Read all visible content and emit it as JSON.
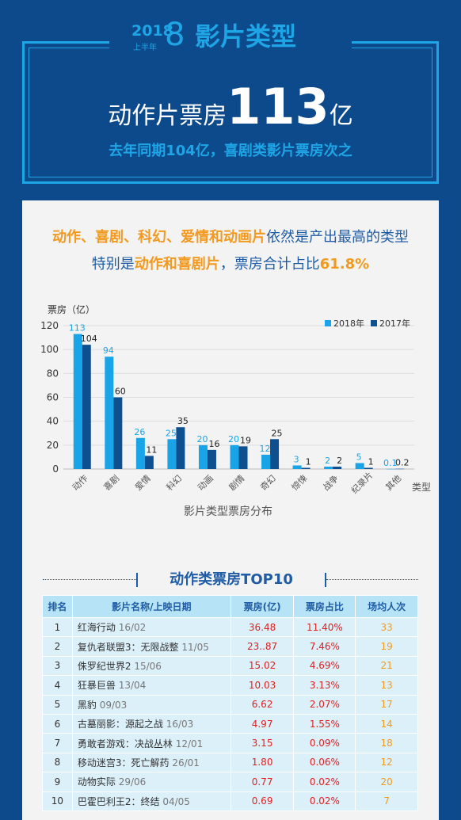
{
  "header": {
    "year": "2018",
    "period": "上半年",
    "big_digit": "8",
    "title": "影片类型",
    "headline_prefix": "动作片票房",
    "headline_number": "113",
    "headline_suffix": "亿",
    "subline": "去年同期104亿，喜剧类影片票房次之"
  },
  "intro": {
    "line1_highlight": "动作、喜剧、科幻、爱情和动画片",
    "line1_rest": "依然是产出最高的类型",
    "line2_a": "特别是",
    "line2_highlight": "动作和喜剧片",
    "line2_b": "，票房合计占比",
    "line2_pct": "61.8%"
  },
  "colors": {
    "bg": "#0d4a8c",
    "accent": "#1ea5e6",
    "series2018": "#19a4e8",
    "series2017": "#0e4f8f",
    "highlight": "#f29a1f",
    "red": "#e02020"
  },
  "chart_data": {
    "type": "bar",
    "ylabel": "票房（亿）",
    "xlabel": "类型",
    "caption": "影片类型票房分布",
    "ylim": [
      0,
      120
    ],
    "yticks": [
      0,
      20,
      40,
      60,
      80,
      100,
      120
    ],
    "grid": true,
    "legend_position": "top-right",
    "categories": [
      "动作",
      "喜剧",
      "爱情",
      "科幻",
      "动画",
      "剧情",
      "奇幻",
      "惊悚",
      "战争",
      "纪录片",
      "其他"
    ],
    "series": [
      {
        "name": "2018年",
        "values": [
          113,
          94,
          26,
          25,
          20,
          20,
          12,
          3,
          2,
          5,
          0.1
        ],
        "labels": [
          "113",
          "94",
          "26",
          "25",
          "20",
          "20",
          "12",
          "3",
          "2",
          "5",
          "0.1"
        ]
      },
      {
        "name": "2017年",
        "values": [
          104,
          60,
          11,
          35,
          16,
          19,
          25,
          1,
          2,
          1,
          0.2
        ],
        "labels": [
          "104",
          "60",
          "11",
          "35",
          "16",
          "19",
          "25",
          "1",
          "2",
          "1",
          "0.2"
        ]
      }
    ]
  },
  "table": {
    "title": "动作类票房TOP10",
    "headers": [
      "排名",
      "影片名称/上映日期",
      "票房(亿)",
      "票房占比",
      "场均人次"
    ],
    "rows": [
      {
        "rank": "1",
        "name": "红海行动",
        "date": "16/02",
        "box": "36.48",
        "share": "11.40%",
        "avg": "33"
      },
      {
        "rank": "2",
        "name": "复仇者联盟3：无限战整",
        "date": "11/05",
        "box": "23..87",
        "share": "7.46%",
        "avg": "19"
      },
      {
        "rank": "3",
        "name": "侏罗纪世界2",
        "date": "15/06",
        "box": "15.02",
        "share": "4.69%",
        "avg": "21"
      },
      {
        "rank": "4",
        "name": "狂暴巨兽",
        "date": "13/04",
        "box": "10.03",
        "share": "3.13%",
        "avg": "13"
      },
      {
        "rank": "5",
        "name": "黑豹",
        "date": "09/03",
        "box": "6.62",
        "share": "2.07%",
        "avg": "17"
      },
      {
        "rank": "6",
        "name": "古墓丽影：源起之战",
        "date": "16/03",
        "box": "4.97",
        "share": "1.55%",
        "avg": "14"
      },
      {
        "rank": "7",
        "name": "勇敢者游戏：决战丛林",
        "date": "12/01",
        "box": "3.15",
        "share": "0.09%",
        "avg": "18"
      },
      {
        "rank": "8",
        "name": "移动迷宫3：死亡解药",
        "date": "26/01",
        "box": "1.80",
        "share": "0.06%",
        "avg": "12"
      },
      {
        "rank": "9",
        "name": "动物实际",
        "date": "29/06",
        "box": "0.77",
        "share": "0.02%",
        "avg": "20"
      },
      {
        "rank": "10",
        "name": "巴霍巴利王2：终结",
        "date": "04/05",
        "box": "0.69",
        "share": "0.02%",
        "avg": "7"
      }
    ]
  }
}
